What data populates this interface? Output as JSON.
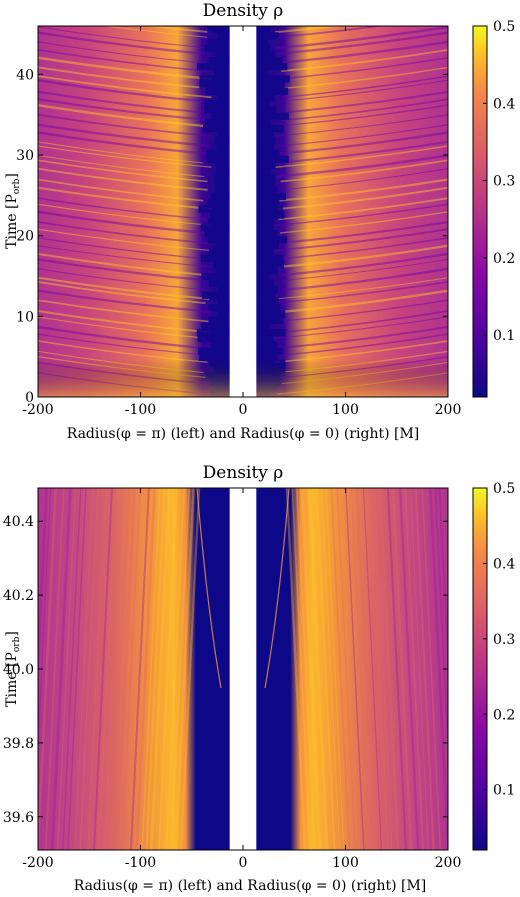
{
  "chart_data": [
    {
      "type": "heatmap",
      "title": "Density ρ",
      "xlabel": "Radius(φ = π) (left) and Radius(φ = 0) (right) [M]",
      "ylabel_main": "Time [P",
      "ylabel_sub": "orb",
      "ylabel_close": "]",
      "xlim": [
        -200,
        200
      ],
      "ylim": [
        0,
        46
      ],
      "xticks": [
        "-200",
        "-100",
        "0",
        "100",
        "200"
      ],
      "xtick_values": [
        -200,
        -100,
        0,
        100,
        200
      ],
      "yticks": [
        "0",
        "10",
        "20",
        "30",
        "40"
      ],
      "ytick_values": [
        0,
        10,
        20,
        30,
        40
      ],
      "colorbar": {
        "range": [
          0.02,
          0.5
        ],
        "ticks": [
          "0.1",
          "0.2",
          "0.3",
          "0.4",
          "0.5"
        ],
        "tick_values": [
          0.1,
          0.2,
          0.3,
          0.4,
          0.5
        ],
        "colormap": "plasma"
      },
      "excised_region": [
        -13,
        13
      ]
    },
    {
      "type": "heatmap",
      "title": "Density ρ",
      "xlabel": "Radius(φ = π) (left) and Radius(φ = 0) (right) [M]",
      "ylabel_main": "Time [P",
      "ylabel_sub": "orb",
      "ylabel_close": "]",
      "xlim": [
        -200,
        200
      ],
      "ylim": [
        39.51,
        40.49
      ],
      "xticks": [
        "-200",
        "-100",
        "0",
        "100",
        "200"
      ],
      "xtick_values": [
        -200,
        -100,
        0,
        100,
        200
      ],
      "yticks": [
        "39.6",
        "39.8",
        "40.0",
        "40.2",
        "40.4"
      ],
      "ytick_values": [
        39.6,
        39.8,
        40.0,
        40.2,
        40.4
      ],
      "colorbar": {
        "range": [
          0.02,
          0.5
        ],
        "ticks": [
          "0.1",
          "0.2",
          "0.3",
          "0.4",
          "0.5"
        ],
        "tick_values": [
          0.1,
          0.2,
          0.3,
          0.4,
          0.5
        ],
        "colormap": "plasma"
      },
      "excised_region": [
        -13,
        13
      ]
    }
  ]
}
